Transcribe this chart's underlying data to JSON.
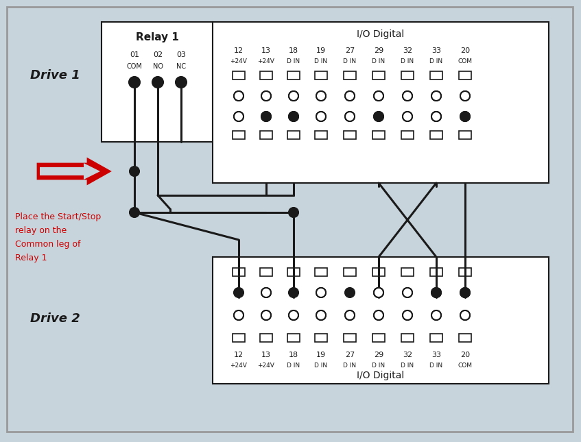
{
  "bg_color": "#c8d4dc",
  "line_color": "#1a1a1a",
  "red_color": "#cc0000",
  "relay1_label": "Relay 1",
  "io_digital_label": "I/O Digital",
  "drive1_label": "Drive 1",
  "drive2_label": "Drive 2",
  "note_text": "Place the Start/Stop\nrelay on the\nCommon leg of\nRelay 1",
  "relay_labels_top": [
    "01",
    "02",
    "03"
  ],
  "relay_labels_bot": [
    "COM",
    "NO",
    "NC"
  ],
  "io_top_nums": [
    "12",
    "13",
    "18",
    "19",
    "27",
    "29",
    "32",
    "33",
    "20"
  ],
  "io_top_subs": [
    "+24V",
    "+24V",
    "D IN",
    "D IN",
    "D IN",
    "D IN",
    "D IN",
    "D IN",
    "COM"
  ],
  "io_bot_nums": [
    "12",
    "13",
    "18",
    "19",
    "27",
    "29",
    "32",
    "33",
    "20"
  ],
  "io_bot_subs": [
    "+24V",
    "+24V",
    "D IN",
    "D IN",
    "D IN",
    "D IN",
    "D IN",
    "D IN",
    "COM"
  ]
}
